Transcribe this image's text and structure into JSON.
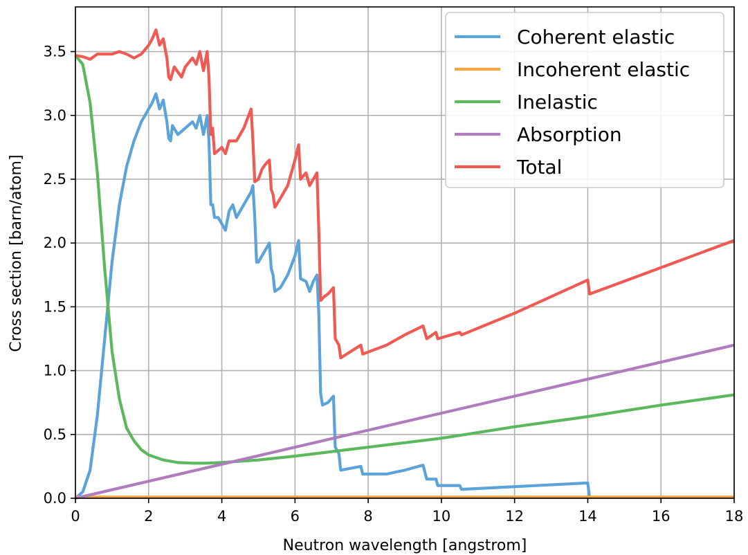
{
  "chart_data": {
    "type": "line",
    "title": "",
    "xlabel": "Neutron wavelength [angstrom]",
    "ylabel": "Cross section [barn/atom]",
    "xlim": [
      0,
      18
    ],
    "ylim": [
      0,
      3.85
    ],
    "xticks": [
      0,
      2,
      4,
      6,
      8,
      10,
      12,
      14,
      16,
      18
    ],
    "yticks": [
      0.0,
      0.5,
      1.0,
      1.5,
      2.0,
      2.5,
      3.0,
      3.5
    ],
    "xtick_labels": [
      "0",
      "2",
      "4",
      "6",
      "8",
      "10",
      "12",
      "14",
      "16",
      "18"
    ],
    "ytick_labels": [
      "0.0",
      "0.5",
      "1.0",
      "1.5",
      "2.0",
      "2.5",
      "3.0",
      "3.5"
    ],
    "grid": true,
    "legend_position": "top-right",
    "series": [
      {
        "name": "Coherent elastic",
        "color": "#5ba3d9",
        "points": [
          [
            0,
            0
          ],
          [
            0.2,
            0.05
          ],
          [
            0.4,
            0.22
          ],
          [
            0.6,
            0.65
          ],
          [
            0.8,
            1.25
          ],
          [
            1.0,
            1.85
          ],
          [
            1.2,
            2.3
          ],
          [
            1.4,
            2.6
          ],
          [
            1.6,
            2.8
          ],
          [
            1.8,
            2.95
          ],
          [
            2.0,
            3.05
          ],
          [
            2.1,
            3.1
          ],
          [
            2.2,
            3.17
          ],
          [
            2.3,
            3.05
          ],
          [
            2.4,
            3.12
          ],
          [
            2.5,
            2.95
          ],
          [
            2.55,
            2.82
          ],
          [
            2.6,
            2.8
          ],
          [
            2.65,
            2.92
          ],
          [
            2.8,
            2.85
          ],
          [
            3.0,
            2.9
          ],
          [
            3.2,
            2.95
          ],
          [
            3.3,
            2.9
          ],
          [
            3.4,
            3.0
          ],
          [
            3.5,
            2.85
          ],
          [
            3.6,
            3.0
          ],
          [
            3.65,
            2.8
          ],
          [
            3.7,
            2.3
          ],
          [
            3.75,
            2.3
          ],
          [
            3.8,
            2.2
          ],
          [
            3.9,
            2.2
          ],
          [
            4.0,
            2.15
          ],
          [
            4.1,
            2.1
          ],
          [
            4.2,
            2.25
          ],
          [
            4.3,
            2.3
          ],
          [
            4.4,
            2.2
          ],
          [
            4.6,
            2.3
          ],
          [
            4.8,
            2.4
          ],
          [
            4.85,
            2.45
          ],
          [
            4.9,
            2.2
          ],
          [
            4.95,
            1.85
          ],
          [
            5.0,
            1.85
          ],
          [
            5.1,
            1.9
          ],
          [
            5.2,
            1.95
          ],
          [
            5.3,
            2.0
          ],
          [
            5.35,
            1.8
          ],
          [
            5.4,
            1.75
          ],
          [
            5.45,
            1.62
          ],
          [
            5.6,
            1.65
          ],
          [
            5.8,
            1.75
          ],
          [
            6.0,
            1.9
          ],
          [
            6.1,
            2.02
          ],
          [
            6.15,
            1.72
          ],
          [
            6.3,
            1.7
          ],
          [
            6.4,
            1.62
          ],
          [
            6.5,
            1.7
          ],
          [
            6.6,
            1.75
          ],
          [
            6.65,
            1.45
          ],
          [
            6.7,
            0.82
          ],
          [
            6.75,
            0.73
          ],
          [
            6.9,
            0.75
          ],
          [
            7.05,
            0.8
          ],
          [
            7.1,
            0.4
          ],
          [
            7.2,
            0.35
          ],
          [
            7.25,
            0.22
          ],
          [
            7.8,
            0.25
          ],
          [
            7.85,
            0.19
          ],
          [
            8.5,
            0.19
          ],
          [
            9.0,
            0.22
          ],
          [
            9.5,
            0.26
          ],
          [
            9.6,
            0.15
          ],
          [
            9.85,
            0.15
          ],
          [
            9.9,
            0.1
          ],
          [
            10.5,
            0.1
          ],
          [
            10.55,
            0.07
          ],
          [
            14.0,
            0.12
          ],
          [
            14.05,
            0.0
          ]
        ]
      },
      {
        "name": "Incoherent elastic",
        "color": "#f5a442",
        "points": [
          [
            0,
            0.01
          ],
          [
            18,
            0.01
          ]
        ]
      },
      {
        "name": "Inelastic",
        "color": "#5cb85c",
        "points": [
          [
            0,
            3.47
          ],
          [
            0.2,
            3.4
          ],
          [
            0.4,
            3.1
          ],
          [
            0.6,
            2.55
          ],
          [
            0.8,
            1.8
          ],
          [
            1.0,
            1.15
          ],
          [
            1.2,
            0.78
          ],
          [
            1.4,
            0.55
          ],
          [
            1.6,
            0.45
          ],
          [
            1.8,
            0.38
          ],
          [
            2.0,
            0.34
          ],
          [
            2.4,
            0.3
          ],
          [
            2.8,
            0.28
          ],
          [
            3.2,
            0.275
          ],
          [
            3.6,
            0.275
          ],
          [
            4.0,
            0.28
          ],
          [
            5.0,
            0.3
          ],
          [
            6.0,
            0.33
          ],
          [
            8.0,
            0.4
          ],
          [
            10.0,
            0.47
          ],
          [
            12.0,
            0.56
          ],
          [
            14.0,
            0.64
          ],
          [
            16.0,
            0.73
          ],
          [
            18.0,
            0.81
          ]
        ]
      },
      {
        "name": "Absorption",
        "color": "#b07cc0",
        "points": [
          [
            0,
            0
          ],
          [
            18,
            1.2
          ]
        ]
      },
      {
        "name": "Total",
        "color": "#ef5a52",
        "points": [
          [
            0,
            3.47
          ],
          [
            0.2,
            3.46
          ],
          [
            0.4,
            3.44
          ],
          [
            0.6,
            3.48
          ],
          [
            0.8,
            3.48
          ],
          [
            1.0,
            3.48
          ],
          [
            1.2,
            3.5
          ],
          [
            1.4,
            3.48
          ],
          [
            1.6,
            3.45
          ],
          [
            1.8,
            3.48
          ],
          [
            2.0,
            3.55
          ],
          [
            2.1,
            3.6
          ],
          [
            2.2,
            3.67
          ],
          [
            2.3,
            3.55
          ],
          [
            2.4,
            3.6
          ],
          [
            2.5,
            3.45
          ],
          [
            2.55,
            3.3
          ],
          [
            2.6,
            3.28
          ],
          [
            2.7,
            3.38
          ],
          [
            2.9,
            3.3
          ],
          [
            3.0,
            3.38
          ],
          [
            3.2,
            3.45
          ],
          [
            3.3,
            3.4
          ],
          [
            3.4,
            3.5
          ],
          [
            3.5,
            3.35
          ],
          [
            3.6,
            3.5
          ],
          [
            3.65,
            3.3
          ],
          [
            3.7,
            2.85
          ],
          [
            3.75,
            2.9
          ],
          [
            3.8,
            2.7
          ],
          [
            4.0,
            2.75
          ],
          [
            4.1,
            2.7
          ],
          [
            4.2,
            2.8
          ],
          [
            4.4,
            2.8
          ],
          [
            4.6,
            2.9
          ],
          [
            4.8,
            3.05
          ],
          [
            4.85,
            2.8
          ],
          [
            4.9,
            2.48
          ],
          [
            5.0,
            2.5
          ],
          [
            5.1,
            2.58
          ],
          [
            5.2,
            2.62
          ],
          [
            5.3,
            2.65
          ],
          [
            5.35,
            2.42
          ],
          [
            5.4,
            2.38
          ],
          [
            5.45,
            2.28
          ],
          [
            5.6,
            2.35
          ],
          [
            5.8,
            2.45
          ],
          [
            6.0,
            2.65
          ],
          [
            6.1,
            2.77
          ],
          [
            6.15,
            2.5
          ],
          [
            6.3,
            2.55
          ],
          [
            6.4,
            2.45
          ],
          [
            6.5,
            2.5
          ],
          [
            6.6,
            2.55
          ],
          [
            6.65,
            2.1
          ],
          [
            6.7,
            1.55
          ],
          [
            6.8,
            1.58
          ],
          [
            6.9,
            1.6
          ],
          [
            7.05,
            1.65
          ],
          [
            7.1,
            1.25
          ],
          [
            7.2,
            1.2
          ],
          [
            7.25,
            1.1
          ],
          [
            7.8,
            1.2
          ],
          [
            7.85,
            1.13
          ],
          [
            8.5,
            1.2
          ],
          [
            9.0,
            1.28
          ],
          [
            9.5,
            1.35
          ],
          [
            9.6,
            1.25
          ],
          [
            9.85,
            1.3
          ],
          [
            9.9,
            1.25
          ],
          [
            10.5,
            1.3
          ],
          [
            10.55,
            1.28
          ],
          [
            12.0,
            1.45
          ],
          [
            14.0,
            1.71
          ],
          [
            14.05,
            1.6
          ],
          [
            18.0,
            2.02
          ]
        ]
      }
    ]
  }
}
